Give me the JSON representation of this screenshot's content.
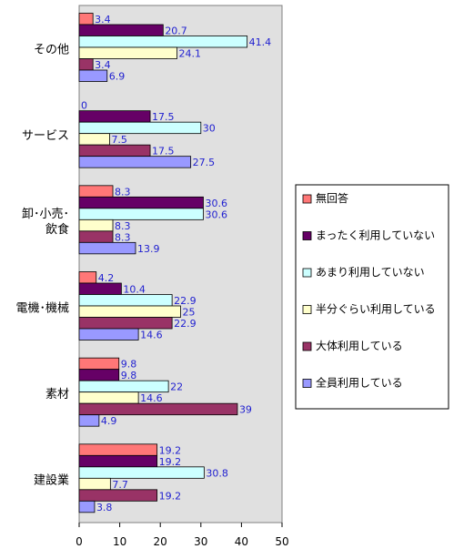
{
  "chart_data": {
    "type": "bar",
    "orientation": "horizontal",
    "categories": [
      "その他",
      "サービス",
      "卸･小売･飲食",
      "電機･機械",
      "素材",
      "建設業"
    ],
    "category_lines": [
      [
        "その他"
      ],
      [
        "サービス"
      ],
      [
        "卸･小売･",
        "飲食"
      ],
      [
        "電機･機械"
      ],
      [
        "素材"
      ],
      [
        "建設業"
      ]
    ],
    "series": [
      {
        "name": "無回答",
        "color": "#ff7777",
        "values": [
          3.4,
          0,
          8.3,
          4.2,
          9.8,
          19.2
        ]
      },
      {
        "name": "まったく利用していない",
        "color": "#660066",
        "values": [
          20.7,
          17.5,
          30.6,
          10.4,
          9.8,
          19.2
        ]
      },
      {
        "name": "あまり利用していない",
        "color": "#ccffff",
        "values": [
          41.4,
          30,
          30.6,
          22.9,
          22,
          30.8
        ]
      },
      {
        "name": "半分ぐらい利用している",
        "color": "#ffffcc",
        "values": [
          24.1,
          7.5,
          8.3,
          25,
          14.6,
          7.7
        ]
      },
      {
        "name": "大体利用している",
        "color": "#993366",
        "values": [
          3.4,
          17.5,
          8.3,
          22.9,
          39,
          19.2
        ]
      },
      {
        "name": "全員利用している",
        "color": "#9999ff",
        "values": [
          6.9,
          27.5,
          13.9,
          14.6,
          4.9,
          3.8
        ]
      }
    ],
    "value_labels": [
      [
        "3.4",
        "20.7",
        "41.4",
        "24.1",
        "3.4",
        "6.9"
      ],
      [
        "0",
        "17.5",
        "30",
        "7.5",
        "17.5",
        "27.5"
      ],
      [
        "8.3",
        "30.6",
        "30.6",
        "8.3",
        "8.3",
        "13.9"
      ],
      [
        "4.2",
        "10.4",
        "22.9",
        "25",
        "22.9",
        "14.6"
      ],
      [
        "9.8",
        "9.8",
        "22",
        "14.6",
        "39",
        "4.9"
      ],
      [
        "19.2",
        "19.2",
        "30.8",
        "7.7",
        "19.2",
        "3.8"
      ]
    ],
    "xlim": [
      0,
      50
    ],
    "xticks": [
      "0",
      "10",
      "20",
      "30",
      "40",
      "50"
    ],
    "grid": false,
    "plot_background": "#e0e0e0",
    "legend_position": "right",
    "title": "",
    "xlabel": "",
    "ylabel": ""
  }
}
